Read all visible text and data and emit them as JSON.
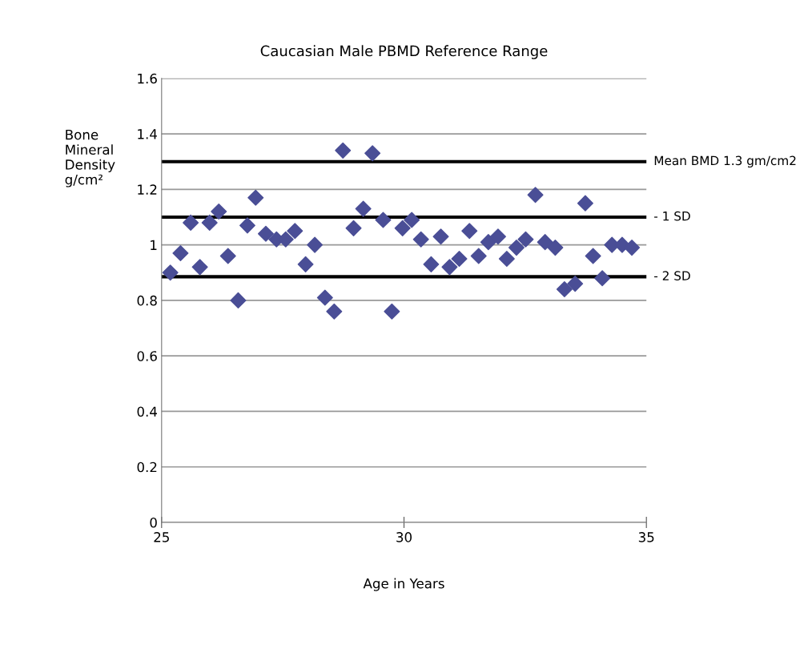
{
  "chart_data": {
    "type": "scatter",
    "title": "Caucasian Male PBMD Reference Range",
    "xlabel": "Age in Years",
    "ylabel": "Bone\nMineral\nDensity\ng/cm²",
    "x": [
      25.18,
      25.39,
      25.6,
      25.79,
      25.99,
      26.18,
      26.37,
      26.58,
      26.77,
      26.94,
      27.15,
      27.37,
      27.56,
      27.75,
      27.97,
      28.16,
      28.37,
      28.56,
      28.74,
      28.96,
      29.16,
      29.35,
      29.57,
      29.75,
      29.97,
      30.16,
      30.35,
      30.56,
      30.76,
      30.94,
      31.14,
      31.35,
      31.54,
      31.74,
      31.94,
      32.12,
      32.32,
      32.51,
      32.71,
      32.91,
      33.12,
      33.31,
      33.53,
      33.74,
      33.9,
      34.09,
      34.29,
      34.5,
      34.7
    ],
    "series": [
      {
        "color": "#4a4e96",
        "values": [
          0.9,
          0.97,
          1.08,
          0.92,
          1.08,
          1.12,
          0.96,
          0.8,
          1.07,
          1.17,
          1.04,
          1.02,
          1.02,
          1.05,
          0.93,
          1.0,
          0.81,
          0.76,
          1.34,
          1.06,
          1.13,
          1.33,
          1.09,
          0.76,
          1.06,
          1.09,
          1.02,
          0.93,
          1.03,
          0.92,
          0.95,
          1.05,
          0.96,
          1.01,
          1.03,
          0.95,
          0.99,
          1.02,
          1.18,
          1.01,
          0.99,
          0.84,
          0.86,
          1.15,
          0.96,
          0.88,
          1.0,
          1.0,
          0.99
        ]
      }
    ],
    "xlim": [
      25,
      35
    ],
    "xticks": [
      25,
      30,
      35
    ],
    "ylim": [
      0,
      1.6
    ],
    "yticks": [
      0,
      0.2,
      0.4,
      0.6,
      0.8,
      1,
      1.2,
      1.4,
      1.6
    ],
    "grid": "y",
    "marker": "diamond",
    "ref_lines": [
      {
        "axis": "y",
        "value": 1.3,
        "label": "Mean BMD 1.3 gm/cm2",
        "color": "#000000"
      },
      {
        "axis": "y",
        "value": 1.1,
        "label": "- 1 SD",
        "color": "#000000"
      },
      {
        "axis": "y",
        "value": 0.885,
        "label": "- 2 SD",
        "color": "#000000"
      }
    ]
  }
}
